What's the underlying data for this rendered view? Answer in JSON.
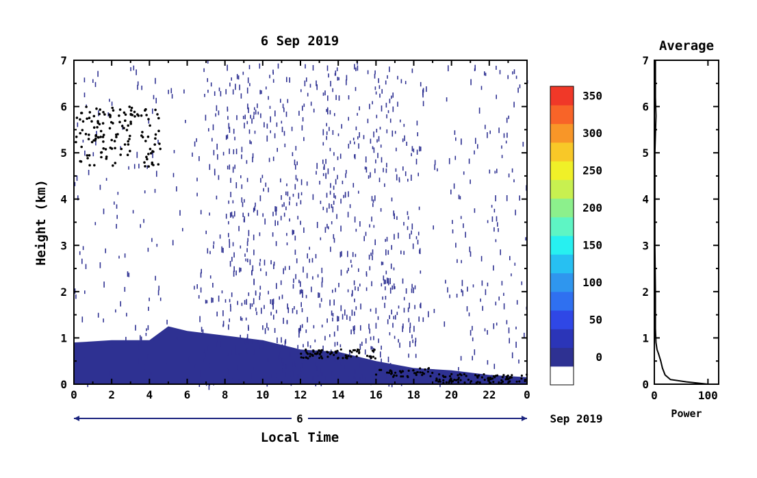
{
  "main_plot": {
    "title": "6 Sep 2019",
    "ylabel": "Height (km)",
    "xlabel": "Local Time",
    "date_label": "6",
    "date_suffix": "Sep 2019",
    "xticks": [
      "0",
      "2",
      "4",
      "6",
      "8",
      "10",
      "12",
      "14",
      "16",
      "18",
      "20",
      "22",
      "0"
    ],
    "yticks": [
      "0",
      "1",
      "2",
      "3",
      "4",
      "5",
      "6",
      "7"
    ]
  },
  "colorbar": {
    "labels": [
      "0",
      "50",
      "100",
      "150",
      "200",
      "250",
      "300",
      "350"
    ],
    "colors": [
      "#ffffff",
      "#2e3192",
      "#2b35b8",
      "#2f47e6",
      "#2f70f0",
      "#2f96ee",
      "#27c0f2",
      "#27f0f0",
      "#5ef5c4",
      "#8cf08c",
      "#c8f050",
      "#f0f028",
      "#f8c828",
      "#f89628",
      "#f86428",
      "#f03828"
    ]
  },
  "side_plot": {
    "title": "Average",
    "xlabel": "Power",
    "xticks": [
      "0",
      "100"
    ],
    "yticks": [
      "0",
      "1",
      "2",
      "3",
      "4",
      "5",
      "6",
      "7"
    ]
  },
  "chart_data": [
    {
      "type": "heatmap",
      "title": "6 Sep 2019",
      "xlabel": "Local Time",
      "ylabel": "Height (km)",
      "xlim": [
        0,
        24
      ],
      "ylim": [
        0,
        7
      ],
      "colorbar_range": [
        0,
        375
      ],
      "description_values": {
        "boundary_layer_top_km": [
          {
            "t": 0,
            "h": 0.9
          },
          {
            "t": 2,
            "h": 0.95
          },
          {
            "t": 4,
            "h": 0.95
          },
          {
            "t": 5,
            "h": 1.25
          },
          {
            "t": 6,
            "h": 1.15
          },
          {
            "t": 8,
            "h": 1.05
          },
          {
            "t": 10,
            "h": 0.95
          },
          {
            "t": 12,
            "h": 0.75
          },
          {
            "t": 14,
            "h": 0.7
          },
          {
            "t": 16,
            "h": 0.5
          },
          {
            "t": 18,
            "h": 0.35
          },
          {
            "t": 20,
            "h": 0.3
          },
          {
            "t": 22,
            "h": 0.2
          },
          {
            "t": 24,
            "h": 0.15
          }
        ]
      }
    },
    {
      "type": "line",
      "title": "Average",
      "xlabel": "Power",
      "xlim": [
        0,
        120
      ],
      "ylim": [
        0,
        7
      ],
      "series": [
        {
          "x": [
            100,
            60,
            30,
            20,
            15,
            12,
            8,
            5,
            3,
            2,
            2,
            1,
            1,
            1,
            2,
            3,
            2,
            2
          ],
          "y": [
            0,
            0.05,
            0.1,
            0.2,
            0.35,
            0.5,
            0.65,
            0.75,
            0.9,
            1.2,
            2.0,
            3.0,
            4.0,
            5.0,
            5.4,
            5.8,
            6.2,
            7.0
          ]
        }
      ]
    }
  ]
}
